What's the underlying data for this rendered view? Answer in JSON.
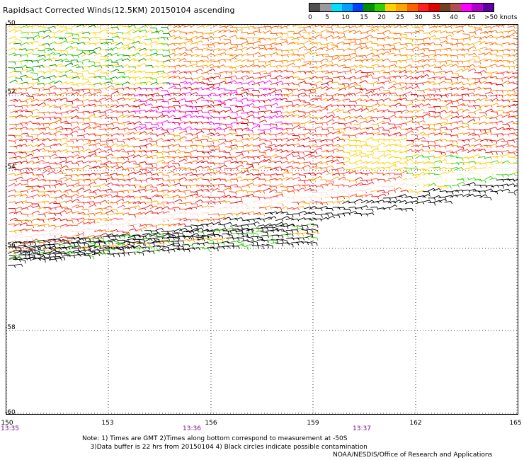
{
  "title": "Rapidsact Corrected Winds(12.5KM) 20150104 ascending",
  "legend": {
    "colors": [
      "#505050",
      "#9a9a9a",
      "#00e0ff",
      "#00a0ff",
      "#0040ff",
      "#009000",
      "#30d000",
      "#ffd000",
      "#ffa500",
      "#ff6000",
      "#ff2020",
      "#e00000",
      "#704020",
      "#b05050",
      "#ff00ff",
      "#b000d0",
      "#6000a0"
    ],
    "ticks": [
      "0",
      "5",
      "10",
      "15",
      "20",
      "25",
      "30",
      "35",
      "40",
      "45"
    ],
    "max_label": ">50 knots"
  },
  "map": {
    "lat_labels": [
      "-50",
      "-52",
      "-54",
      "-56",
      "-58",
      "-60"
    ],
    "lon_labels": [
      "150",
      "153",
      "156",
      "159",
      "162",
      "165"
    ],
    "time_labels": [
      "13:35",
      "13:36",
      "13:37"
    ]
  },
  "notes": {
    "line1": "Note: 1) Times are GMT 2)Times along bottom correspond to measurement at -50S",
    "line2": "3)Data buffer is 22 hrs from 20150104 4) Black circles indicate possible contamination"
  },
  "credit": "NOAA/NESDIS/Office of Research and Applications",
  "icons": [
    "wind-barb-icon"
  ]
}
